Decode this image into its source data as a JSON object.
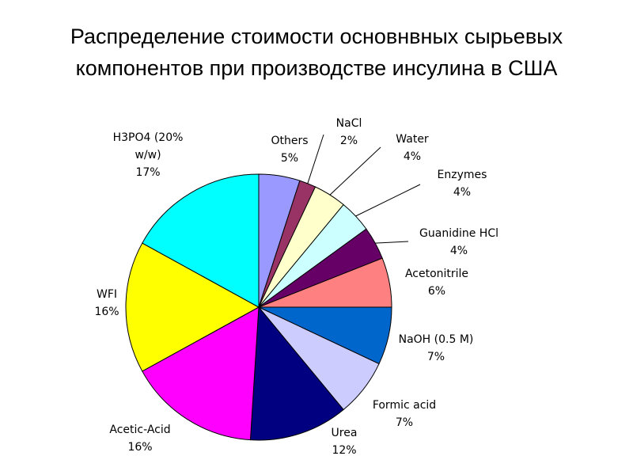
{
  "chart_data": {
    "type": "pie",
    "title": [
      "Распределение стоимости основнвных сырьевых",
      "компонентов при производстве инсулина в США"
    ],
    "slices": [
      {
        "label": [
          "Others"
        ],
        "pct_label": "5%",
        "value": 5,
        "color": "#9999ff"
      },
      {
        "label": [
          "NaCl"
        ],
        "pct_label": "2%",
        "value": 2,
        "color": "#993366"
      },
      {
        "label": [
          "Water"
        ],
        "pct_label": "4%",
        "value": 4,
        "color": "#ffffcc"
      },
      {
        "label": [
          "Enzymes"
        ],
        "pct_label": "4%",
        "value": 4,
        "color": "#ccffff"
      },
      {
        "label": [
          "Guanidine HCl"
        ],
        "pct_label": "4%",
        "value": 4,
        "color": "#660066"
      },
      {
        "label": [
          "Acetonitrile"
        ],
        "pct_label": "6%",
        "value": 6,
        "color": "#ff8080"
      },
      {
        "label": [
          "NaOH (0.5 M)"
        ],
        "pct_label": "7%",
        "value": 7,
        "color": "#0066cc"
      },
      {
        "label": [
          "Formic acid"
        ],
        "pct_label": "7%",
        "value": 7,
        "color": "#ccccff"
      },
      {
        "label": [
          "Urea"
        ],
        "pct_label": "12%",
        "value": 12,
        "color": "#000080"
      },
      {
        "label": [
          "Acetic-Acid"
        ],
        "pct_label": "16%",
        "value": 16,
        "color": "#ff00ff"
      },
      {
        "label": [
          "WFI"
        ],
        "pct_label": "16%",
        "value": 16,
        "color": "#ffff00"
      },
      {
        "label": [
          "H3PO4 (20%",
          "w/w)"
        ],
        "pct_label": "17%",
        "value": 17,
        "color": "#00ffff"
      }
    ]
  }
}
